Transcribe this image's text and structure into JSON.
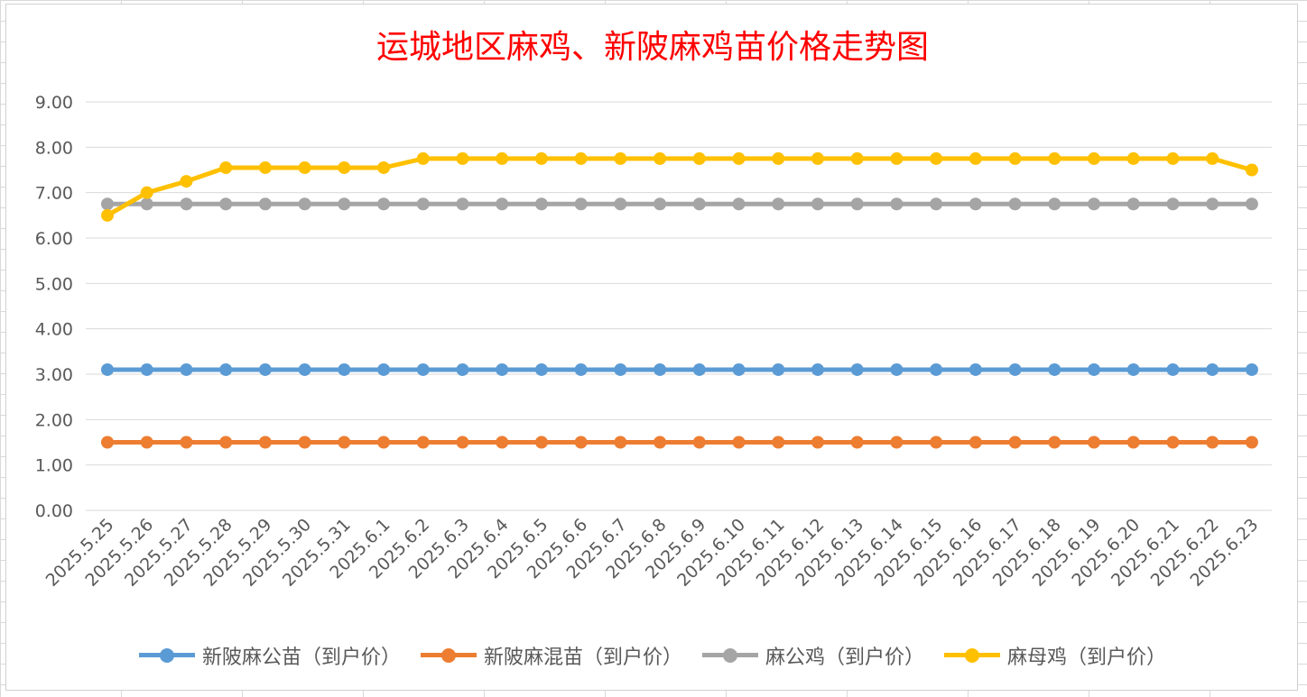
{
  "chart_data": {
    "type": "line",
    "title": "运城地区麻鸡、新陂麻鸡苗价格走势图",
    "xlabel": "",
    "ylabel": "",
    "ylim": [
      0,
      9
    ],
    "y_ticks": [
      "0.00",
      "1.00",
      "2.00",
      "3.00",
      "4.00",
      "5.00",
      "6.00",
      "7.00",
      "8.00",
      "9.00"
    ],
    "grid": true,
    "legend_position": "bottom",
    "categories": [
      "2025.5.25",
      "2025.5.26",
      "2025.5.27",
      "2025.5.28",
      "2025.5.29",
      "2025.5.30",
      "2025.5.31",
      "2025.6.1",
      "2025.6.2",
      "2025.6.3",
      "2025.6.4",
      "2025.6.5",
      "2025.6.6",
      "2025.6.7",
      "2025.6.8",
      "2025.6.9",
      "2025.6.10",
      "2025.6.11",
      "2025.6.12",
      "2025.6.13",
      "2025.6.14",
      "2025.6.15",
      "2025.6.16",
      "2025.6.17",
      "2025.6.18",
      "2025.6.19",
      "2025.6.20",
      "2025.6.21",
      "2025.6.22",
      "2025.6.23"
    ],
    "series": [
      {
        "name": "新陂麻公苗（到户价）",
        "color": "#5b9bd5",
        "values": [
          3.1,
          3.1,
          3.1,
          3.1,
          3.1,
          3.1,
          3.1,
          3.1,
          3.1,
          3.1,
          3.1,
          3.1,
          3.1,
          3.1,
          3.1,
          3.1,
          3.1,
          3.1,
          3.1,
          3.1,
          3.1,
          3.1,
          3.1,
          3.1,
          3.1,
          3.1,
          3.1,
          3.1,
          3.1,
          3.1
        ]
      },
      {
        "name": "新陂麻混苗（到户价）",
        "color": "#ed7d31",
        "values": [
          1.5,
          1.5,
          1.5,
          1.5,
          1.5,
          1.5,
          1.5,
          1.5,
          1.5,
          1.5,
          1.5,
          1.5,
          1.5,
          1.5,
          1.5,
          1.5,
          1.5,
          1.5,
          1.5,
          1.5,
          1.5,
          1.5,
          1.5,
          1.5,
          1.5,
          1.5,
          1.5,
          1.5,
          1.5,
          1.5
        ]
      },
      {
        "name": "麻公鸡（到户价）",
        "color": "#a5a5a5",
        "values": [
          6.75,
          6.75,
          6.75,
          6.75,
          6.75,
          6.75,
          6.75,
          6.75,
          6.75,
          6.75,
          6.75,
          6.75,
          6.75,
          6.75,
          6.75,
          6.75,
          6.75,
          6.75,
          6.75,
          6.75,
          6.75,
          6.75,
          6.75,
          6.75,
          6.75,
          6.75,
          6.75,
          6.75,
          6.75,
          6.75
        ]
      },
      {
        "name": "麻母鸡（到户价）",
        "color": "#ffc000",
        "values": [
          6.5,
          7.0,
          7.25,
          7.55,
          7.55,
          7.55,
          7.55,
          7.55,
          7.75,
          7.75,
          7.75,
          7.75,
          7.75,
          7.75,
          7.75,
          7.75,
          7.75,
          7.75,
          7.75,
          7.75,
          7.75,
          7.75,
          7.75,
          7.75,
          7.75,
          7.75,
          7.75,
          7.75,
          7.75,
          7.5
        ]
      }
    ]
  }
}
